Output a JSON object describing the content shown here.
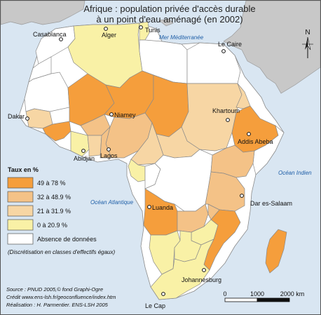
{
  "title": {
    "line1": "Afrique : population privée d'accès durable",
    "line2": "à un point d'eau aménagé (en 2002)"
  },
  "colors": {
    "sea": "#d9e6f2",
    "other_land": "#c8c8c8",
    "class_49_78": "#f59e3c",
    "class_32_48": "#f4c287",
    "class_21_31": "#f7d6a4",
    "class_0_20": "#f9f1a6",
    "no_data": "#ffffff"
  },
  "legend": {
    "heading": "Taux en %",
    "items": [
      {
        "label": "49 à 78 %",
        "color": "#f59e3c"
      },
      {
        "label": "32 à 48.9 %",
        "color": "#f4c287"
      },
      {
        "label": "21 à 31.9 %",
        "color": "#f7d6a4"
      },
      {
        "label": "0 à 20.9 %",
        "color": "#f9f1a6"
      },
      {
        "label": "Absence de données",
        "color": "#ffffff"
      }
    ],
    "note": "(Discrétisation en classes d'effectifs égaux)"
  },
  "seas": {
    "mediterranean": "Mer Méditerranée",
    "indian": "Océan Indien",
    "atlantic": "Océan Atlantique"
  },
  "cities": {
    "casablanca": "Casablanca",
    "alger": "Alger",
    "tunis": "Tunis",
    "le_caire": "Le Caire",
    "dakar": "Dakar",
    "niamey": "Niamey",
    "khartoum": "Khartoum",
    "addis_abeba": "Addis Abeba",
    "abidjan": "Abidjan",
    "lagos": "Lagos",
    "dar_es_salaam": "Dar es-Salaam",
    "luanda": "Luanda",
    "johannesburg": "Johannesburg",
    "le_cap": "Le Cap"
  },
  "north": "N",
  "scale": {
    "ticks": [
      "0",
      "1000",
      "2000 km"
    ]
  },
  "credits": {
    "source": "Source :  PNUD 2005,© fond Graphi-Ogre",
    "credit": "Crédit www.ens-lsh.fr/geoconfluence/index.htm",
    "realisation": "Réalisation : H. Parmentier. ENS-LSH 2005"
  }
}
